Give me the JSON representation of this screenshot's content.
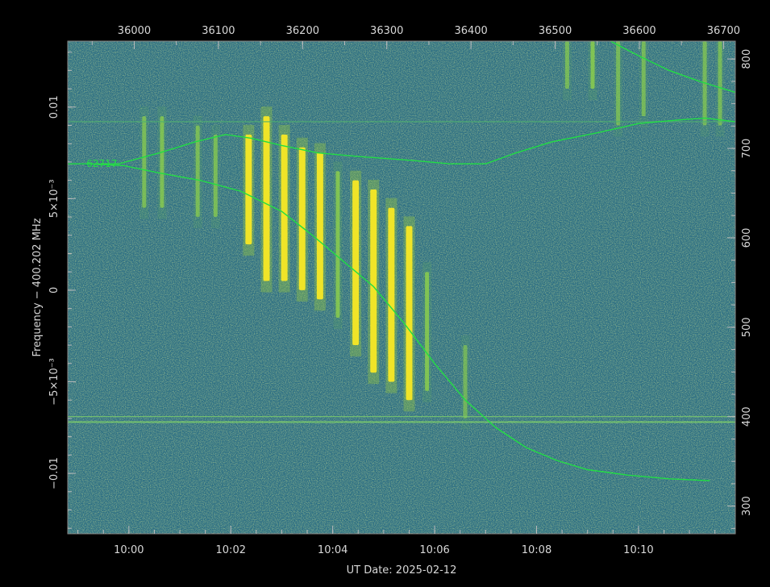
{
  "chart_data": {
    "type": "heatmap",
    "xlabel": "UT Date: 2025-02-12",
    "ylabel": "Frequency − 400.202 MHz",
    "x_ticks": [
      "10:00",
      "10:02",
      "10:04",
      "10:06",
      "10:08",
      "10:10"
    ],
    "x_tick_minutes": [
      0,
      2,
      4,
      6,
      8,
      10
    ],
    "x_range_minutes": [
      -1.2,
      11.9
    ],
    "top_ticks": [
      "36000",
      "36100",
      "36200",
      "36300",
      "36400",
      "36500",
      "36600",
      "36700"
    ],
    "top_tick_values": [
      36000,
      36100,
      36200,
      36300,
      36400,
      36500,
      36600,
      36700
    ],
    "top_range": [
      35921,
      36714
    ],
    "y_ticks": [
      "−0.01",
      "−5×10⁻³",
      "0",
      "5×10⁻³",
      "0.01"
    ],
    "y_tick_values": [
      -0.01,
      -0.005,
      0,
      0.005,
      0.01
    ],
    "y_range": [
      -0.0133,
      0.0136
    ],
    "right_ticks": [
      "300",
      "400",
      "500",
      "600",
      "700",
      "800"
    ],
    "right_tick_values": [
      300,
      400,
      500,
      600,
      700,
      800
    ],
    "right_range": [
      269,
      820
    ],
    "background_color": "#2c6e84",
    "signal_color": "#f5e626",
    "trace_color": "#22dd44",
    "trace_label": "62717",
    "doppler_trace": [
      [
        -0.8,
        0.0069
      ],
      [
        -0.1,
        0.0068
      ],
      [
        0.6,
        0.0064
      ],
      [
        1.4,
        0.006
      ],
      [
        2.2,
        0.0054
      ],
      [
        3.0,
        0.0043
      ],
      [
        3.6,
        0.003
      ],
      [
        4.2,
        0.0016
      ],
      [
        4.8,
        0.0002
      ],
      [
        5.4,
        -0.0018
      ],
      [
        6.0,
        -0.004
      ],
      [
        6.6,
        -0.006
      ],
      [
        7.2,
        -0.0075
      ],
      [
        7.8,
        -0.0086
      ],
      [
        8.4,
        -0.0093
      ],
      [
        9.0,
        -0.0098
      ],
      [
        9.8,
        -0.0101
      ],
      [
        10.6,
        -0.0103
      ],
      [
        11.4,
        -0.0104
      ]
    ],
    "upper_trace": [
      [
        -1.2,
        0.0069
      ],
      [
        -0.2,
        0.0069
      ],
      [
        0.6,
        0.0075
      ],
      [
        1.3,
        0.0081
      ],
      [
        1.9,
        0.0085
      ],
      [
        2.4,
        0.0083
      ],
      [
        3.0,
        0.0079
      ],
      [
        3.7,
        0.0075
      ],
      [
        4.5,
        0.0073
      ],
      [
        5.5,
        0.0071
      ],
      [
        6.3,
        0.0069
      ],
      [
        7.0,
        0.0069
      ],
      [
        7.6,
        0.0075
      ],
      [
        8.3,
        0.0081
      ],
      [
        9.2,
        0.0086
      ],
      [
        10.0,
        0.0091
      ],
      [
        10.8,
        0.0093
      ],
      [
        11.3,
        0.0094
      ],
      [
        11.9,
        0.0092
      ]
    ],
    "corner_trace": [
      [
        9.45,
        0.0136
      ],
      [
        10.0,
        0.0128
      ],
      [
        10.6,
        0.012
      ],
      [
        11.2,
        0.0114
      ],
      [
        11.9,
        0.0108
      ]
    ],
    "horizontal_lines": [
      0.0092,
      -0.0069,
      -0.0072
    ],
    "signal_bursts": [
      {
        "t": 0.3,
        "f_min": 0.0045,
        "f_max": 0.0095,
        "intensity": 0.35
      },
      {
        "t": 0.65,
        "f_min": 0.0045,
        "f_max": 0.0095,
        "intensity": 0.4
      },
      {
        "t": 1.35,
        "f_min": 0.004,
        "f_max": 0.009,
        "intensity": 0.35
      },
      {
        "t": 1.7,
        "f_min": 0.004,
        "f_max": 0.0085,
        "intensity": 0.35
      },
      {
        "t": 2.35,
        "f_min": 0.0025,
        "f_max": 0.0085,
        "intensity": 1.0
      },
      {
        "t": 2.7,
        "f_min": 0.0005,
        "f_max": 0.0095,
        "intensity": 1.0
      },
      {
        "t": 3.05,
        "f_min": 0.0005,
        "f_max": 0.0085,
        "intensity": 1.0
      },
      {
        "t": 3.4,
        "f_min": 0.0,
        "f_max": 0.0078,
        "intensity": 1.0
      },
      {
        "t": 3.75,
        "f_min": -0.0005,
        "f_max": 0.0075,
        "intensity": 1.0
      },
      {
        "t": 4.1,
        "f_min": -0.0015,
        "f_max": 0.0065,
        "intensity": 0.55
      },
      {
        "t": 4.45,
        "f_min": -0.003,
        "f_max": 0.006,
        "intensity": 1.0
      },
      {
        "t": 4.8,
        "f_min": -0.0045,
        "f_max": 0.0055,
        "intensity": 1.0
      },
      {
        "t": 5.15,
        "f_min": -0.005,
        "f_max": 0.0045,
        "intensity": 1.0
      },
      {
        "t": 5.5,
        "f_min": -0.006,
        "f_max": 0.0035,
        "intensity": 1.0
      },
      {
        "t": 5.85,
        "f_min": -0.0055,
        "f_max": 0.001,
        "intensity": 0.45
      },
      {
        "t": 6.6,
        "f_min": -0.007,
        "f_max": -0.003,
        "intensity": 0.25
      },
      {
        "t": 8.6,
        "f_min": 0.011,
        "f_max": 0.0136,
        "intensity": 0.3
      },
      {
        "t": 9.1,
        "f_min": 0.011,
        "f_max": 0.0136,
        "intensity": 0.45
      },
      {
        "t": 9.6,
        "f_min": 0.009,
        "f_max": 0.0136,
        "intensity": 0.3
      },
      {
        "t": 10.1,
        "f_min": 0.0095,
        "f_max": 0.0136,
        "intensity": 0.3
      },
      {
        "t": 11.3,
        "f_min": 0.009,
        "f_max": 0.0136,
        "intensity": 0.3
      },
      {
        "t": 11.6,
        "f_min": 0.009,
        "f_max": 0.0136,
        "intensity": 0.3
      }
    ]
  }
}
